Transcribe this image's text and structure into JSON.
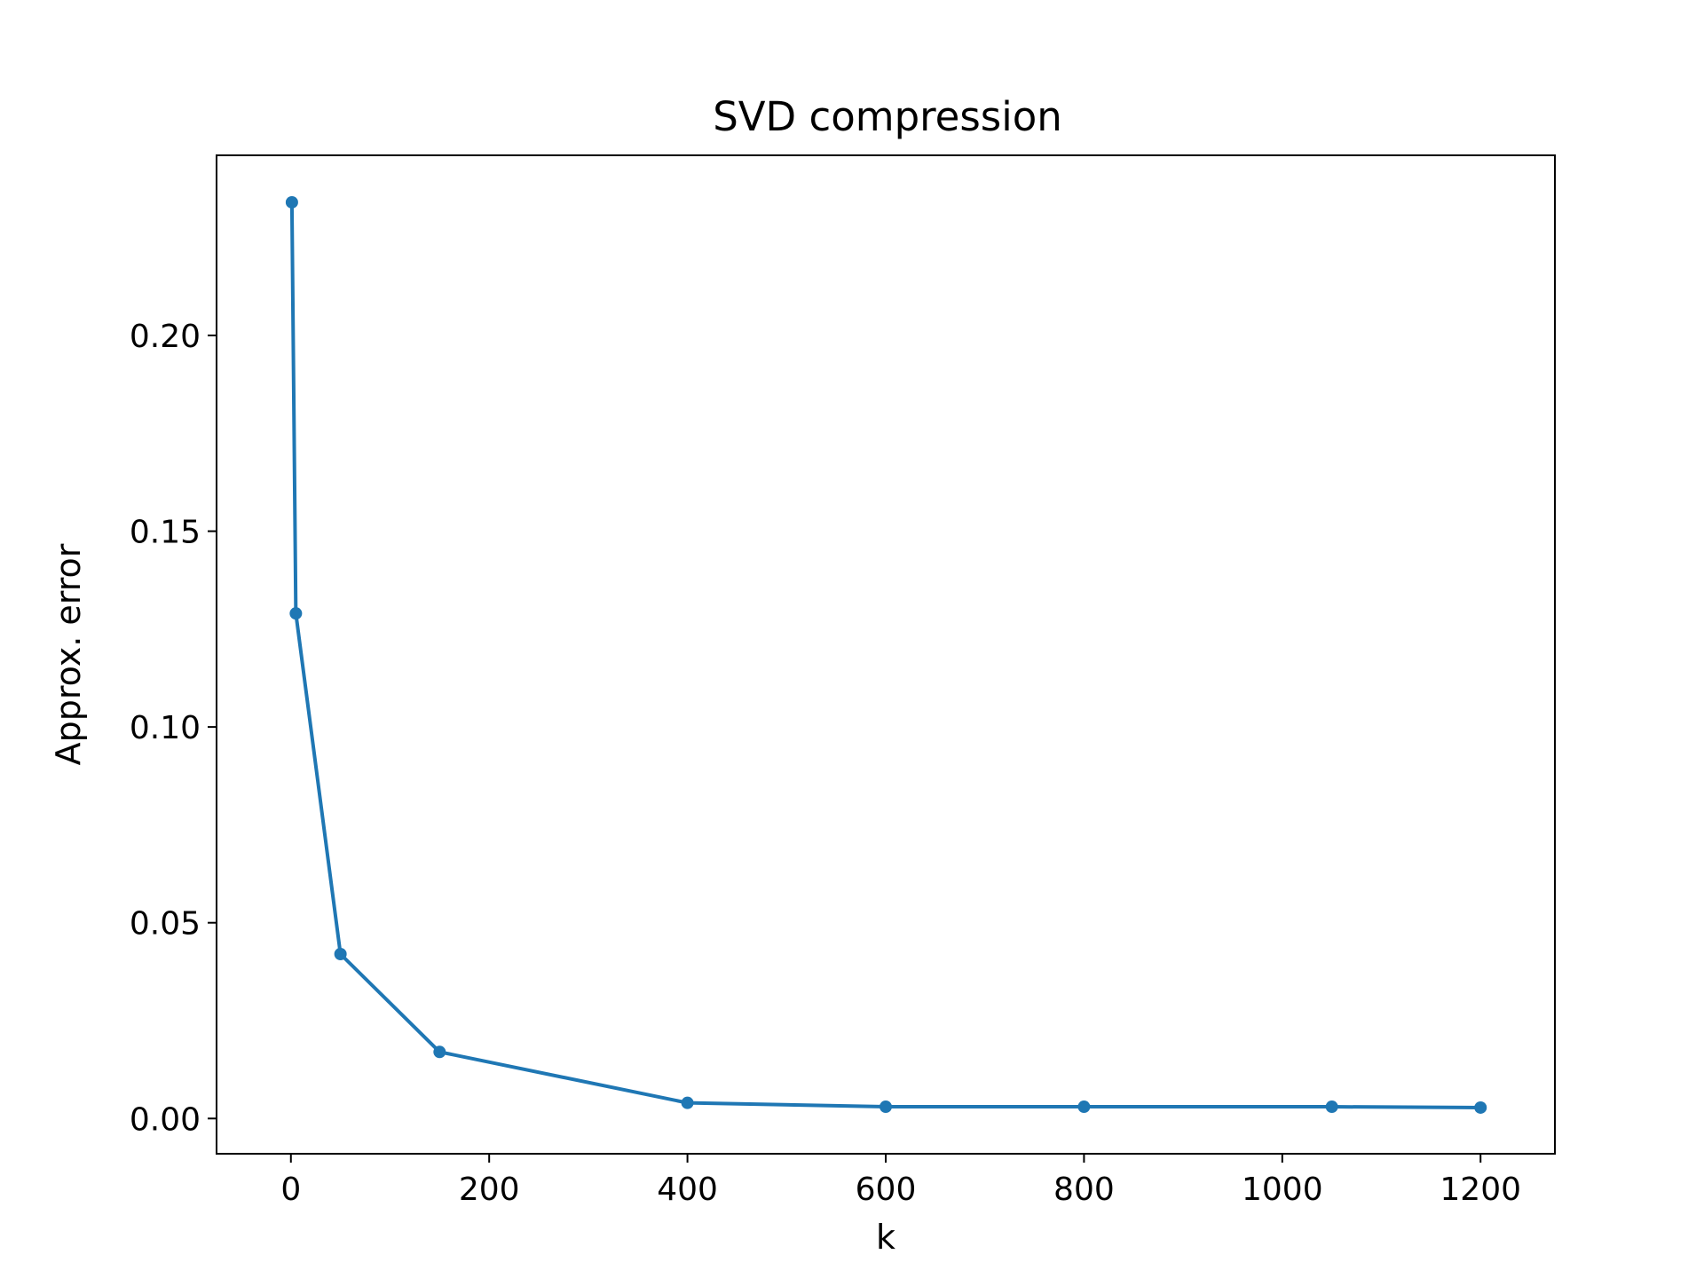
{
  "chart_data": {
    "type": "line",
    "title": "SVD compression",
    "xlabel": "k",
    "ylabel": "Approx. error",
    "xlim": [
      -75,
      1275
    ],
    "ylim": [
      -0.009,
      0.246
    ],
    "xticks": [
      0,
      200,
      400,
      600,
      800,
      1000,
      1200
    ],
    "xtick_labels": [
      "0",
      "200",
      "400",
      "600",
      "800",
      "1000",
      "1200"
    ],
    "yticks": [
      0.0,
      0.05,
      0.1,
      0.15,
      0.2
    ],
    "ytick_labels": [
      "0.00",
      "0.05",
      "0.10",
      "0.15",
      "0.20"
    ],
    "grid": false,
    "series": [
      {
        "color": "#1f77b4",
        "marker": "circle",
        "x": [
          1,
          5,
          50,
          150,
          400,
          600,
          800,
          1050,
          1200
        ],
        "y": [
          0.234,
          0.129,
          0.042,
          0.017,
          0.004,
          0.003,
          0.003,
          0.003,
          0.0028
        ]
      }
    ]
  }
}
